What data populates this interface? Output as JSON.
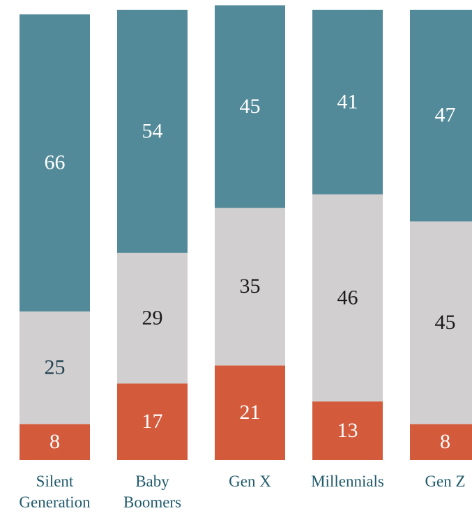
{
  "chart_data": {
    "type": "stacked-bar",
    "categories": [
      "Silent Generation",
      "Baby Boomers",
      "Gen X",
      "Millennials",
      "Gen Z"
    ],
    "series": [
      {
        "color": "#d35b3b",
        "values": [
          8,
          17,
          21,
          13,
          8
        ]
      },
      {
        "color": "#d1cfcf",
        "values": [
          25,
          29,
          35,
          46,
          45
        ]
      },
      {
        "color": "#538a99",
        "values": [
          66,
          54,
          45,
          41,
          47
        ]
      }
    ],
    "ylim": [
      0,
      100
    ]
  }
}
